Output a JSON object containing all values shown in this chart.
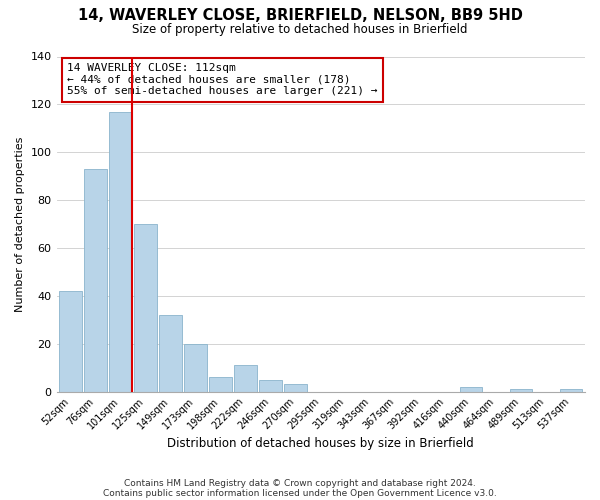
{
  "title": "14, WAVERLEY CLOSE, BRIERFIELD, NELSON, BB9 5HD",
  "subtitle": "Size of property relative to detached houses in Brierfield",
  "xlabel": "Distribution of detached houses by size in Brierfield",
  "ylabel": "Number of detached properties",
  "bar_labels": [
    "52sqm",
    "76sqm",
    "101sqm",
    "125sqm",
    "149sqm",
    "173sqm",
    "198sqm",
    "222sqm",
    "246sqm",
    "270sqm",
    "295sqm",
    "319sqm",
    "343sqm",
    "367sqm",
    "392sqm",
    "416sqm",
    "440sqm",
    "464sqm",
    "489sqm",
    "513sqm",
    "537sqm"
  ],
  "bar_values": [
    42,
    93,
    117,
    70,
    32,
    20,
    6,
    11,
    5,
    3,
    0,
    0,
    0,
    0,
    0,
    0,
    2,
    0,
    1,
    0,
    1
  ],
  "bar_color": "#b8d4e8",
  "bar_edge_color": "#8ab4cc",
  "vline_x_index": 2,
  "vline_color": "#dd0000",
  "annotation_title": "14 WAVERLEY CLOSE: 112sqm",
  "annotation_line1": "← 44% of detached houses are smaller (178)",
  "annotation_line2": "55% of semi-detached houses are larger (221) →",
  "ylim": [
    0,
    140
  ],
  "yticks": [
    0,
    20,
    40,
    60,
    80,
    100,
    120,
    140
  ],
  "footer1": "Contains HM Land Registry data © Crown copyright and database right 2024.",
  "footer2": "Contains public sector information licensed under the Open Government Licence v3.0.",
  "background_color": "#ffffff",
  "grid_color": "#cccccc"
}
